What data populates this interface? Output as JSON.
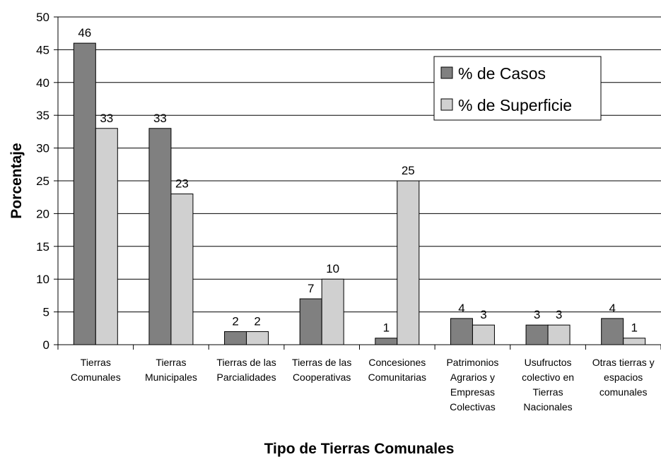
{
  "chart_data": {
    "type": "bar",
    "x_label": "Tipo de Tierras Comunales",
    "y_label": "Porcentaje",
    "categories": [
      [
        "Tierras",
        "Comunales"
      ],
      [
        "Tierras",
        "Municipales"
      ],
      [
        "Tierras de las",
        "Parcialidades"
      ],
      [
        "Tierras de las",
        "Cooperativas"
      ],
      [
        "Concesiones",
        "Comunitarias"
      ],
      [
        "Patrimonios",
        "Agrarios y",
        "Empresas",
        "Colectivas"
      ],
      [
        "Usufructos",
        "colectivo en",
        "Tierras",
        "Nacionales"
      ],
      [
        "Otras tierras y",
        "espacios",
        "comunales"
      ]
    ],
    "series": [
      {
        "name": "% de Casos",
        "color": "#808080",
        "values": [
          46,
          33,
          2,
          7,
          1,
          4,
          3,
          4
        ]
      },
      {
        "name": "% de Superficie",
        "color": "#d0d0d0",
        "values": [
          33,
          23,
          2,
          10,
          25,
          3,
          3,
          1
        ]
      }
    ],
    "ylim": [
      0,
      50
    ],
    "yticks": [
      0,
      5,
      10,
      15,
      20,
      25,
      30,
      35,
      40,
      45,
      50
    ],
    "grid": true,
    "legend": "upper right"
  }
}
